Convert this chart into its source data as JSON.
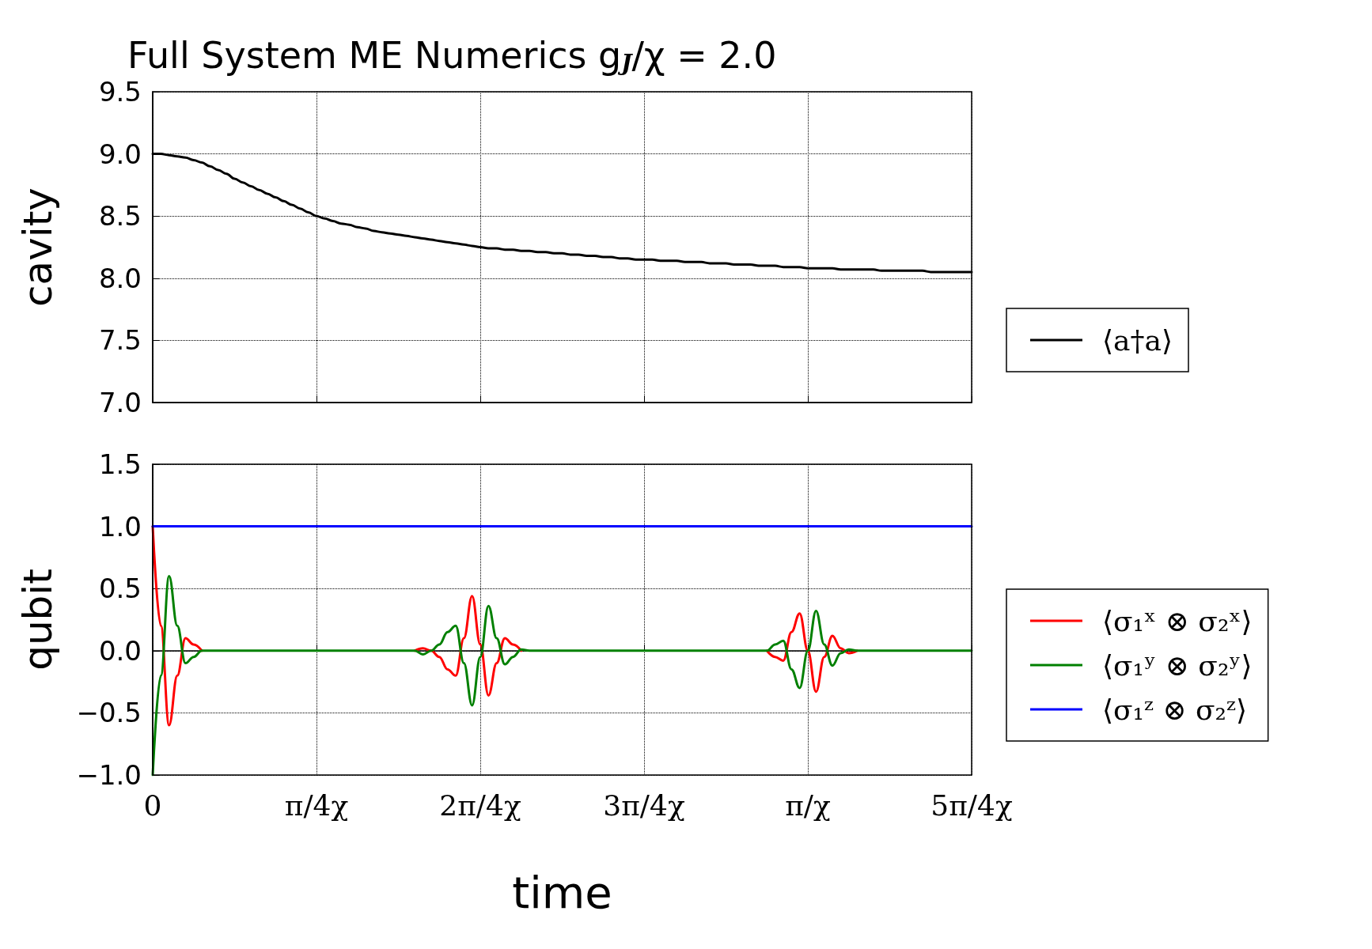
{
  "chart_data": [
    {
      "type": "line",
      "title": "Full System ME Numerics g$_{J}$/χ = 2.0",
      "ylabel": "cavity",
      "categories": [
        null,
        null,
        null,
        null,
        null,
        null,
        null,
        null,
        null,
        null,
        null,
        null,
        null,
        null,
        null,
        null,
        null,
        null,
        null,
        null,
        null,
        null,
        null,
        null,
        null,
        null,
        null,
        null,
        null,
        null,
        null,
        null,
        null,
        null,
        null,
        null,
        null,
        null,
        null,
        null,
        null,
        null,
        null,
        null,
        null,
        null,
        null,
        null,
        null,
        null,
        null,
        null,
        null,
        null,
        null,
        null,
        null,
        null,
        null,
        null,
        null,
        null,
        null,
        null,
        null,
        null,
        null,
        null,
        null,
        null,
        null,
        null,
        null,
        null,
        null,
        null,
        null,
        null,
        null,
        null,
        null,
        null,
        null,
        null,
        null,
        null,
        null,
        null,
        null,
        null,
        null,
        null,
        null,
        null,
        null,
        null,
        null,
        null,
        null,
        null,
        null
      ],
      "ylim": [
        7,
        9.5
      ],
      "yticks": [
        {
          "value": 7,
          "label": "7.0"
        },
        {
          "value": 7.5,
          "label": "7.5"
        },
        {
          "value": 8,
          "label": "8.0"
        },
        {
          "value": 8.5,
          "label": "8.5"
        },
        {
          "value": 9,
          "label": "9.0"
        },
        {
          "value": 9.5,
          "label": "9.5"
        }
      ],
      "tick_labels": "y",
      "grid": true,
      "legend": "right",
      "line_style": "solid",
      "marker": "none",
      "series": [
        {
          "name": "⟨a†a⟩",
          "color": "#000000",
          "values": [
            9.0,
            9.0,
            8.99,
            8.98,
            8.97,
            8.95,
            8.93,
            8.9,
            8.87,
            8.84,
            8.8,
            8.77,
            8.74,
            8.71,
            8.68,
            8.65,
            8.62,
            8.59,
            8.56,
            8.53,
            8.5,
            8.48,
            8.46,
            8.44,
            8.43,
            8.41,
            8.4,
            8.38,
            8.37,
            8.36,
            8.35,
            8.34,
            8.33,
            8.32,
            8.31,
            8.3,
            8.29,
            8.28,
            8.27,
            8.26,
            8.25,
            8.24,
            8.24,
            8.23,
            8.23,
            8.22,
            8.22,
            8.21,
            8.21,
            8.2,
            8.2,
            8.19,
            8.19,
            8.18,
            8.18,
            8.17,
            8.17,
            8.16,
            8.16,
            8.15,
            8.15,
            8.15,
            8.14,
            8.14,
            8.14,
            8.13,
            8.13,
            8.13,
            8.12,
            8.12,
            8.12,
            8.11,
            8.11,
            8.11,
            8.1,
            8.1,
            8.1,
            8.09,
            8.09,
            8.09,
            8.08,
            8.08,
            8.08,
            8.08,
            8.07,
            8.07,
            8.07,
            8.07,
            8.07,
            8.06,
            8.06,
            8.06,
            8.06,
            8.06,
            8.06,
            8.05,
            8.05,
            8.05,
            8.05,
            8.05,
            8.05
          ]
        }
      ]
    },
    {
      "type": "line",
      "xlabel": "time",
      "ylabel": "qubit",
      "categories": [
        "0",
        null,
        null,
        null,
        null,
        null,
        null,
        null,
        null,
        null,
        null,
        null,
        null,
        null,
        null,
        null,
        null,
        null,
        null,
        null,
        "π/4χ",
        null,
        null,
        null,
        null,
        null,
        null,
        null,
        null,
        null,
        null,
        null,
        null,
        null,
        null,
        null,
        null,
        null,
        null,
        null,
        "2π/4χ",
        null,
        null,
        null,
        null,
        null,
        null,
        null,
        null,
        null,
        null,
        null,
        null,
        null,
        null,
        null,
        null,
        null,
        null,
        null,
        "3π/4χ",
        null,
        null,
        null,
        null,
        null,
        null,
        null,
        null,
        null,
        null,
        null,
        null,
        null,
        null,
        null,
        null,
        null,
        null,
        null,
        "π/χ",
        null,
        null,
        null,
        null,
        null,
        null,
        null,
        null,
        null,
        null,
        null,
        null,
        null,
        null,
        null,
        null,
        null,
        null,
        null,
        "5π/4χ"
      ],
      "ylim": [
        -1,
        1.5
      ],
      "yticks": [
        {
          "value": -1,
          "label": "−1.0"
        },
        {
          "value": -0.5,
          "label": "−0.5"
        },
        {
          "value": 0,
          "label": "0.0"
        },
        {
          "value": 0.5,
          "label": "0.5"
        },
        {
          "value": 1,
          "label": "1.0"
        },
        {
          "value": 1.5,
          "label": "1.5"
        }
      ],
      "grid": true,
      "legend": "right",
      "line_style": "solid",
      "marker": "none",
      "series": [
        {
          "name": "⟨σ₁ˣ ⊗ σ₂ˣ⟩",
          "color": "#ff0000",
          "values": [
            1.0,
            0.2,
            -0.6,
            -0.2,
            0.1,
            0.05,
            0,
            null,
            null,
            null,
            null,
            null,
            null,
            null,
            null,
            null,
            null,
            null,
            null,
            null,
            null,
            null,
            null,
            null,
            null,
            null,
            null,
            null,
            null,
            null,
            null,
            null,
            0,
            0.02,
            0,
            -0.05,
            -0.15,
            -0.2,
            0.1,
            0.44,
            0.05,
            -0.36,
            -0.1,
            0.1,
            0.05,
            0,
            null,
            null,
            null,
            null,
            null,
            null,
            null,
            null,
            null,
            null,
            null,
            null,
            null,
            null,
            null,
            null,
            null,
            null,
            null,
            null,
            null,
            null,
            null,
            null,
            null,
            null,
            null,
            null,
            null,
            0,
            -0.05,
            -0.08,
            0.15,
            0.3,
            0,
            -0.33,
            -0.05,
            0.12,
            0.02,
            -0.02,
            0,
            null,
            null,
            null,
            null,
            null,
            null,
            null,
            null,
            null,
            null,
            null,
            null,
            null,
            null
          ]
        },
        {
          "name": "⟨σ₁ʸ ⊗ σ₂ʸ⟩",
          "color": "#008000",
          "values": [
            -1.0,
            -0.2,
            0.6,
            0.2,
            -0.1,
            -0.05,
            0,
            0,
            0,
            0,
            0,
            0,
            0,
            0,
            0,
            0,
            0,
            0,
            0,
            0,
            0,
            0,
            0,
            0,
            0,
            0,
            0,
            0,
            0,
            0,
            0,
            0,
            0,
            -0.03,
            0,
            0.05,
            0.15,
            0.2,
            -0.1,
            -0.44,
            -0.05,
            0.36,
            0.1,
            -0.11,
            -0.05,
            0.01,
            0,
            0,
            0,
            0,
            0,
            0,
            0,
            0,
            0,
            0,
            0,
            0,
            0,
            0,
            0,
            0,
            0,
            0,
            0,
            0,
            0,
            0,
            0,
            0,
            0,
            0,
            0,
            0,
            0,
            0,
            0.05,
            0.08,
            -0.15,
            -0.3,
            0,
            0.32,
            0.05,
            -0.12,
            -0.02,
            0.01,
            0,
            0,
            0,
            0,
            0,
            0,
            0,
            0,
            0,
            0,
            0,
            0,
            0,
            0,
            0
          ]
        },
        {
          "name": "⟨σ₁ᶻ ⊗ σ₂ᶻ⟩",
          "color": "#0000ff",
          "values": [
            1,
            1,
            1,
            1,
            1,
            1,
            1,
            1,
            1,
            1,
            1,
            1,
            1,
            1,
            1,
            1,
            1,
            1,
            1,
            1,
            1,
            1,
            1,
            1,
            1,
            1,
            1,
            1,
            1,
            1,
            1,
            1,
            1,
            1,
            1,
            1,
            1,
            1,
            1,
            1,
            1,
            1,
            1,
            1,
            1,
            1,
            1,
            1,
            1,
            1,
            1,
            1,
            1,
            1,
            1,
            1,
            1,
            1,
            1,
            1,
            1,
            1,
            1,
            1,
            1,
            1,
            1,
            1,
            1,
            1,
            1,
            1,
            1,
            1,
            1,
            1,
            1,
            1,
            1,
            1,
            1,
            1,
            1,
            1,
            1,
            1,
            1,
            1,
            1,
            1,
            1,
            1,
            1,
            1,
            1,
            1,
            1,
            1,
            1,
            1,
            1
          ]
        }
      ]
    }
  ]
}
